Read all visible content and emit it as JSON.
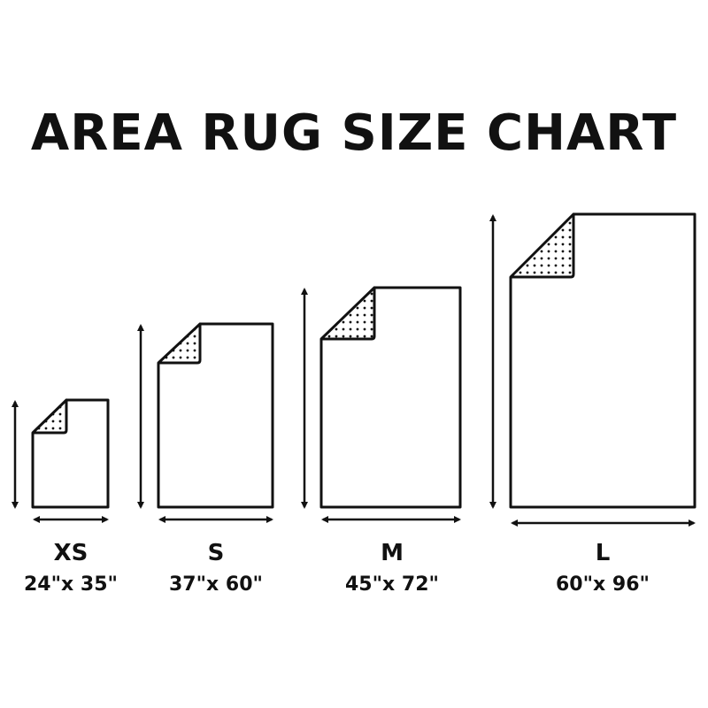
{
  "title": "AREA RUG SIZE CHART",
  "colors": {
    "ink": "#111111",
    "background": "#ffffff"
  },
  "rugs": [
    {
      "size": "XS",
      "dimensions": "24\"x 35\"",
      "width_in": 24,
      "length_in": 35
    },
    {
      "size": "S",
      "dimensions": "37\"x 60\"",
      "width_in": 37,
      "length_in": 60
    },
    {
      "size": "M",
      "dimensions": "45\"x 72\"",
      "width_in": 45,
      "length_in": 72
    },
    {
      "size": "L",
      "dimensions": "60\"x 96\"",
      "width_in": 60,
      "length_in": 96
    }
  ]
}
